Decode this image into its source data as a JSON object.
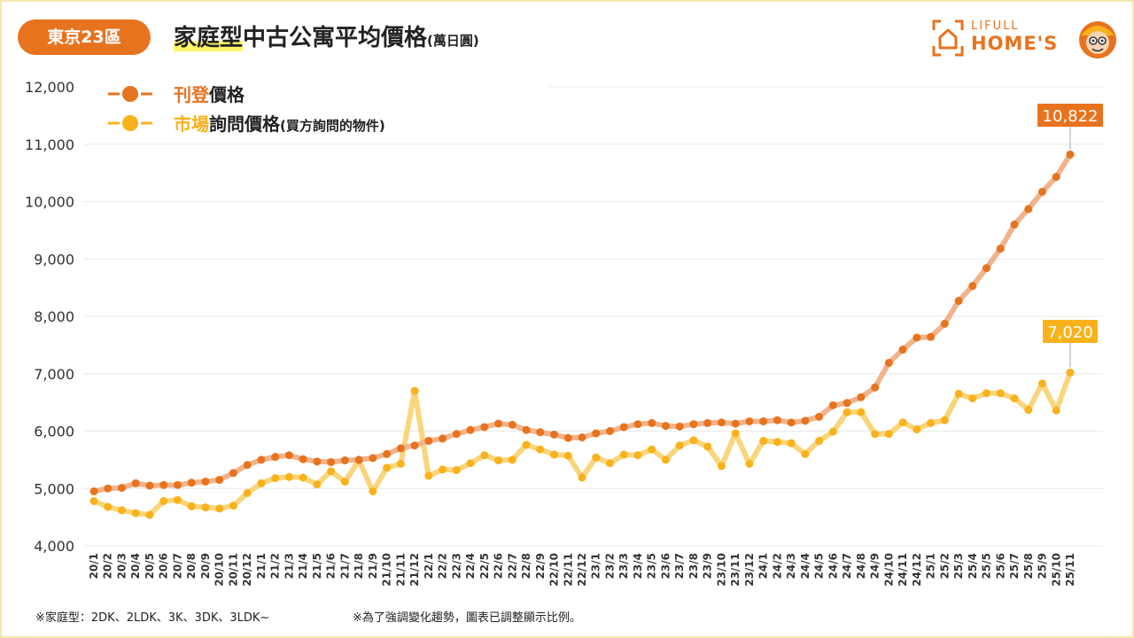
{
  "badge": "東京23區",
  "title": {
    "main_highlight": "家庭型",
    "main_rest": "中古公寓平均價格",
    "unit": "(萬日圓)"
  },
  "logo": {
    "lifull": "LIFULL",
    "homes": "HOME'S"
  },
  "colors": {
    "listing": "#e8731e",
    "listing_line": "#f0b48c",
    "inquiry": "#f9b21b",
    "inquiry_line": "#f9d57c",
    "grid": "#e8e8e8",
    "badge": "#e8731e"
  },
  "footnotes": {
    "left": "※家庭型：2DK、2LDK、3K、3DK、3LDK~",
    "right": "※為了強調變化趨勢，圖表已調整顯示比例。"
  },
  "chart_data": {
    "type": "line",
    "x": [
      "20/1",
      "20/2",
      "20/3",
      "20/4",
      "20/5",
      "20/6",
      "20/7",
      "20/8",
      "20/9",
      "20/10",
      "20/11",
      "20/12",
      "21/1",
      "21/2",
      "21/3",
      "21/4",
      "21/5",
      "21/6",
      "21/7",
      "21/8",
      "21/9",
      "21/10",
      "21/11",
      "21/12",
      "22/1",
      "22/2",
      "22/3",
      "22/4",
      "22/5",
      "22/6",
      "22/7",
      "22/8",
      "22/9",
      "22/10",
      "22/11",
      "22/12",
      "23/1",
      "23/2",
      "23/3",
      "23/4",
      "23/5",
      "23/6",
      "23/7",
      "23/8",
      "23/9",
      "23/10",
      "23/11",
      "23/12",
      "24/1",
      "24/2",
      "24/3",
      "24/4",
      "24/5",
      "24/6",
      "24/7",
      "24/8",
      "24/9",
      "24/10",
      "24/11",
      "24/12",
      "25/1",
      "25/2",
      "25/3",
      "25/4",
      "25/5",
      "25/6",
      "25/7",
      "25/8",
      "25/9",
      "25/10",
      "25/11"
    ],
    "ylim": [
      4000,
      12000
    ],
    "yticks": [
      "4,000",
      "5,000",
      "6,000",
      "7,000",
      "8,000",
      "9,000",
      "10,000",
      "11,000",
      "12,000"
    ],
    "grid": true,
    "legend_position": "top-left",
    "series": [
      {
        "name_accent": "刊登",
        "name_rest": "價格",
        "name_note": "",
        "values": [
          4950,
          5000,
          5010,
          5090,
          5050,
          5060,
          5060,
          5100,
          5120,
          5150,
          5270,
          5410,
          5500,
          5550,
          5580,
          5510,
          5470,
          5460,
          5490,
          5500,
          5530,
          5600,
          5700,
          5750,
          5830,
          5870,
          5950,
          6020,
          6070,
          6130,
          6110,
          6020,
          5980,
          5940,
          5880,
          5890,
          5960,
          6000,
          6070,
          6120,
          6140,
          6090,
          6080,
          6120,
          6140,
          6150,
          6130,
          6170,
          6170,
          6190,
          6150,
          6180,
          6250,
          6450,
          6490,
          6590,
          6760,
          7190,
          7420,
          7630,
          7640,
          7870,
          8270,
          8530,
          8840,
          9180,
          9600,
          9870,
          10170,
          10430,
          10822
        ],
        "end_label": "10,822"
      },
      {
        "name_accent": "市場",
        "name_rest": "詢問價格",
        "name_note": "(買方詢問的物件)",
        "values": [
          4780,
          4680,
          4620,
          4570,
          4540,
          4780,
          4800,
          4690,
          4670,
          4650,
          4700,
          4920,
          5090,
          5180,
          5200,
          5190,
          5070,
          5300,
          5120,
          5490,
          4950,
          5360,
          5430,
          6700,
          5220,
          5330,
          5320,
          5440,
          5580,
          5490,
          5500,
          5760,
          5680,
          5590,
          5570,
          5190,
          5540,
          5440,
          5590,
          5580,
          5680,
          5500,
          5750,
          5840,
          5730,
          5390,
          5960,
          5430,
          5830,
          5810,
          5790,
          5600,
          5830,
          5990,
          6330,
          6330,
          5950,
          5950,
          6150,
          6030,
          6140,
          6190,
          6650,
          6570,
          6660,
          6660,
          6570,
          6370,
          6830,
          6360,
          7020
        ],
        "end_label": "7,020"
      }
    ]
  }
}
